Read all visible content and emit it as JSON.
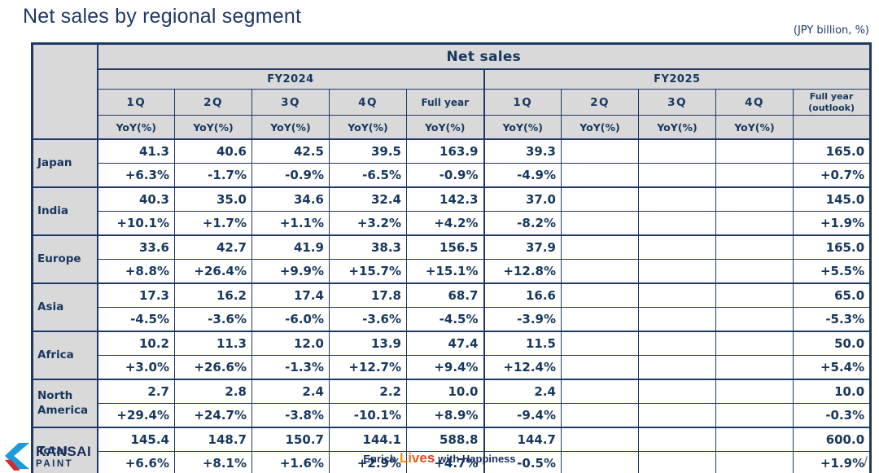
{
  "page": {
    "title": "Net sales by regional segment",
    "unit_note": "(JPY billion, %)",
    "page_number_slash": "/"
  },
  "table": {
    "title": "Net sales",
    "yoy_label": "YoY(%)",
    "groups": [
      {
        "label": "FY2024",
        "quarters": [
          "1Q",
          "2Q",
          "3Q",
          "4Q",
          "Full year"
        ]
      },
      {
        "label": "FY2025",
        "quarters": [
          "1Q",
          "2Q",
          "3Q",
          "4Q",
          "Full year\n(outlook)"
        ]
      }
    ],
    "rows": [
      {
        "region": "Japan",
        "values": [
          "41.3",
          "40.6",
          "42.5",
          "39.5",
          "163.9",
          "39.3",
          "",
          "",
          "",
          "165.0"
        ],
        "yoy": [
          "+6.3%",
          "-1.7%",
          "-0.9%",
          "-6.5%",
          "-0.9%",
          "-4.9%",
          "",
          "",
          "",
          "+0.7%"
        ]
      },
      {
        "region": "India",
        "values": [
          "40.3",
          "35.0",
          "34.6",
          "32.4",
          "142.3",
          "37.0",
          "",
          "",
          "",
          "145.0"
        ],
        "yoy": [
          "+10.1%",
          "+1.7%",
          "+1.1%",
          "+3.2%",
          "+4.2%",
          "-8.2%",
          "",
          "",
          "",
          "+1.9%"
        ]
      },
      {
        "region": "Europe",
        "values": [
          "33.6",
          "42.7",
          "41.9",
          "38.3",
          "156.5",
          "37.9",
          "",
          "",
          "",
          "165.0"
        ],
        "yoy": [
          "+8.8%",
          "+26.4%",
          "+9.9%",
          "+15.7%",
          "+15.1%",
          "+12.8%",
          "",
          "",
          "",
          "+5.5%"
        ]
      },
      {
        "region": "Asia",
        "values": [
          "17.3",
          "16.2",
          "17.4",
          "17.8",
          "68.7",
          "16.6",
          "",
          "",
          "",
          "65.0"
        ],
        "yoy": [
          "-4.5%",
          "-3.6%",
          "-6.0%",
          "-3.6%",
          "-4.5%",
          "-3.9%",
          "",
          "",
          "",
          "-5.3%"
        ]
      },
      {
        "region": "Africa",
        "values": [
          "10.2",
          "11.3",
          "12.0",
          "13.9",
          "47.4",
          "11.5",
          "",
          "",
          "",
          "50.0"
        ],
        "yoy": [
          "+3.0%",
          "+26.6%",
          "-1.3%",
          "+12.7%",
          "+9.4%",
          "+12.4%",
          "",
          "",
          "",
          "+5.4%"
        ]
      },
      {
        "region": "North America",
        "values": [
          "2.7",
          "2.8",
          "2.4",
          "2.2",
          "10.0",
          "2.4",
          "",
          "",
          "",
          "10.0"
        ],
        "yoy": [
          "+29.4%",
          "+24.7%",
          "-3.8%",
          "-10.1%",
          "+8.9%",
          "-9.4%",
          "",
          "",
          "",
          "-0.3%"
        ]
      },
      {
        "region": "Total",
        "values": [
          "145.4",
          "148.7",
          "150.7",
          "144.1",
          "588.8",
          "144.7",
          "",
          "",
          "",
          "600.0"
        ],
        "yoy": [
          "+6.6%",
          "+8.1%",
          "+1.6%",
          "+2.9%",
          "+4.7%",
          "-0.5%",
          "",
          "",
          "",
          "+1.9%"
        ]
      }
    ]
  },
  "footer": {
    "logo_name": "KANSAI",
    "logo_sub": "PAINT",
    "tagline_1": "Enrich",
    "tagline_2": "Lives",
    "tagline_3": "with Happiness"
  }
}
